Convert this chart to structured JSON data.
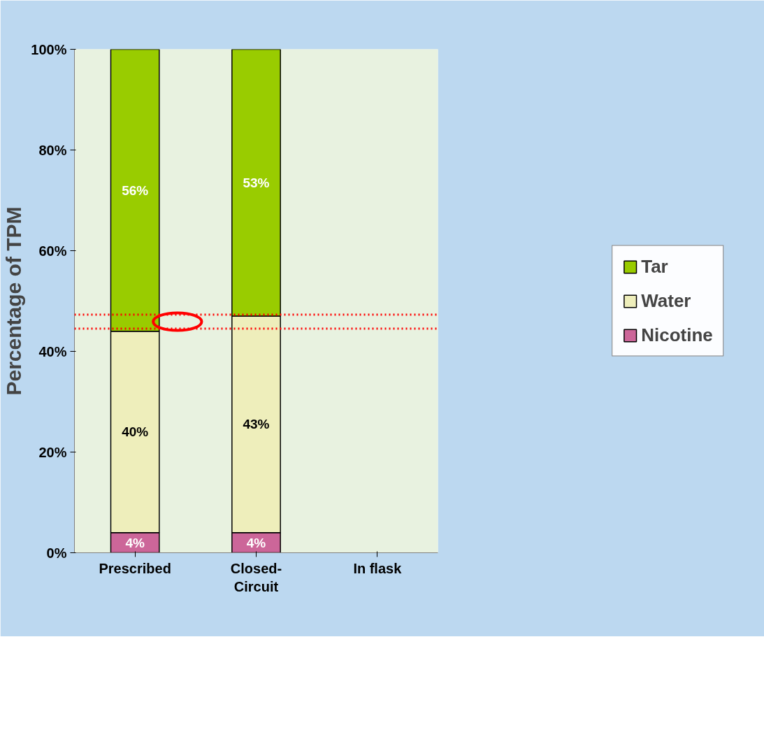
{
  "chart_data": {
    "type": "bar",
    "stacked": true,
    "ylabel": "Percentage of TPM",
    "categories": [
      "Prescribed",
      "Closed-Circuit",
      "In flask"
    ],
    "series": [
      {
        "name": "Nicotine",
        "color": "#cc6699",
        "values": [
          4,
          4,
          null
        ],
        "value_labels": [
          "4%",
          "4%",
          null
        ]
      },
      {
        "name": "Water",
        "color": "#eeeebb",
        "values": [
          40,
          43,
          null
        ],
        "value_labels": [
          "40%",
          "43%",
          null
        ]
      },
      {
        "name": "Tar",
        "color": "#99cc00",
        "values": [
          56,
          53,
          null
        ],
        "value_labels": [
          "56%",
          "53%",
          null
        ]
      }
    ],
    "ylim": [
      0,
      100
    ],
    "yticks": [
      {
        "value": 0,
        "label": "0%"
      },
      {
        "value": 20,
        "label": "20%"
      },
      {
        "value": 40,
        "label": "40%"
      },
      {
        "value": 60,
        "label": "60%"
      },
      {
        "value": 80,
        "label": "80%"
      },
      {
        "value": 100,
        "label": "100%"
      }
    ],
    "ref_lines": [
      {
        "axis": "y",
        "value": 47.3,
        "color": "#ff0000",
        "line_style": "dotted"
      },
      {
        "axis": "y",
        "value": 44.5,
        "color": "#ff0000",
        "line_style": "dotted"
      }
    ],
    "legend": "right",
    "grid": false
  }
}
